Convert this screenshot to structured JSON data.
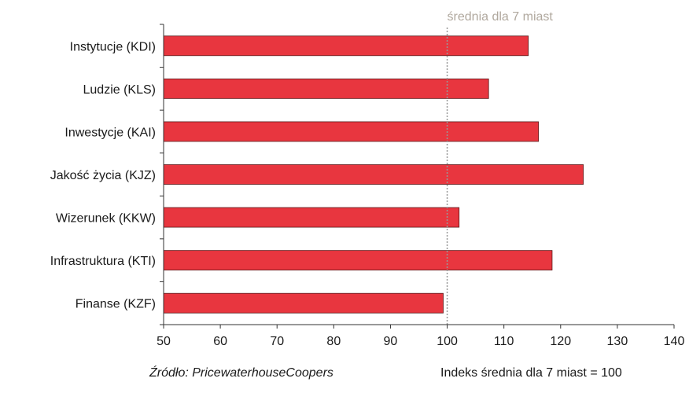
{
  "chart_data": {
    "type": "bar",
    "orientation": "horizontal",
    "categories": [
      "Instytucje (KDI)",
      "Ludzie (KLS)",
      "Inwestycje (KAI)",
      "Jakość życia (KJZ)",
      "Wizerunek (KKW)",
      "Infrastruktura (KTI)",
      "Finanse (KZF)"
    ],
    "values": [
      114.3,
      107.3,
      116.1,
      124.0,
      102.1,
      118.5,
      99.3
    ],
    "xlim": [
      50,
      140
    ],
    "xticks": [
      50,
      60,
      70,
      80,
      90,
      100,
      110,
      120,
      130,
      140
    ],
    "reference_line": {
      "value": 100,
      "label": "średnia dla 7 miast"
    },
    "bar_color": "#e8363f",
    "grid": false
  },
  "footer": {
    "source": "Źródło: PricewaterhouseCoopers",
    "note": "Indeks średnia dla 7 miast = 100"
  }
}
